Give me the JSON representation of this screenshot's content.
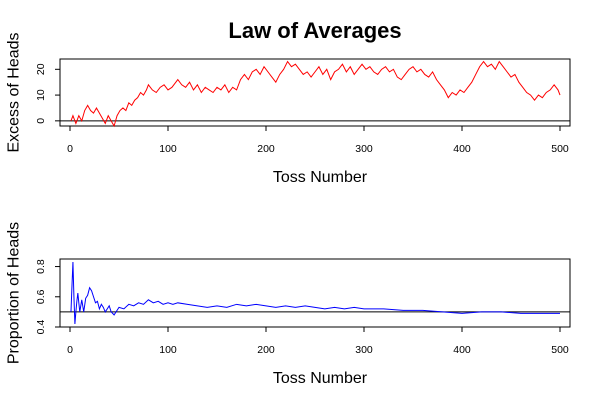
{
  "title": "Law of Averages",
  "chart_data": [
    {
      "type": "line",
      "title": "Law of Averages",
      "xlabel": "Toss Number",
      "ylabel": "Excess of Heads",
      "xlim": [
        0,
        500
      ],
      "ylim": [
        -2,
        24
      ],
      "xticks": [
        0,
        100,
        200,
        300,
        400,
        500
      ],
      "yticks": [
        0,
        10,
        20
      ],
      "grid": false,
      "reference_line": 0,
      "series": [
        {
          "color": "#ff0000",
          "x": [
            1,
            3,
            6,
            9,
            12,
            15,
            18,
            21,
            24,
            27,
            30,
            33,
            36,
            39,
            42,
            45,
            48,
            51,
            54,
            57,
            60,
            63,
            66,
            69,
            72,
            75,
            78,
            80,
            84,
            88,
            92,
            96,
            100,
            104,
            108,
            110,
            114,
            118,
            122,
            126,
            130,
            134,
            138,
            142,
            146,
            150,
            154,
            158,
            162,
            166,
            170,
            174,
            178,
            182,
            186,
            190,
            194,
            198,
            202,
            206,
            210,
            214,
            218,
            222,
            226,
            230,
            234,
            238,
            242,
            246,
            250,
            254,
            258,
            262,
            266,
            270,
            274,
            278,
            282,
            286,
            290,
            294,
            298,
            302,
            306,
            310,
            314,
            318,
            322,
            326,
            330,
            334,
            338,
            342,
            346,
            350,
            354,
            358,
            362,
            366,
            370,
            374,
            378,
            382,
            386,
            390,
            394,
            398,
            402,
            406,
            410,
            414,
            418,
            422,
            426,
            430,
            434,
            438,
            442,
            446,
            450,
            454,
            458,
            462,
            466,
            470,
            474,
            478,
            482,
            486,
            490,
            494,
            498,
            500
          ],
          "y": [
            0,
            2,
            -1,
            2,
            0,
            4,
            6,
            4,
            3,
            5,
            3,
            1,
            -1,
            2,
            0,
            -2,
            2,
            4,
            5,
            4,
            7,
            6,
            8,
            9,
            11,
            10,
            12,
            14,
            12,
            11,
            13,
            14,
            12,
            13,
            15,
            16,
            14,
            13,
            15,
            12,
            14,
            11,
            13,
            12,
            11,
            13,
            12,
            14,
            11,
            13,
            12,
            16,
            18,
            16,
            19,
            20,
            18,
            21,
            19,
            17,
            15,
            18,
            20,
            23,
            21,
            22,
            20,
            18,
            19,
            17,
            19,
            21,
            18,
            20,
            16,
            19,
            20,
            22,
            19,
            21,
            18,
            20,
            22,
            20,
            21,
            19,
            18,
            20,
            21,
            19,
            20,
            17,
            16,
            18,
            20,
            21,
            19,
            20,
            18,
            17,
            19,
            16,
            14,
            12,
            9,
            11,
            10,
            12,
            11,
            13,
            15,
            18,
            21,
            23,
            21,
            22,
            20,
            23,
            21,
            19,
            17,
            18,
            15,
            13,
            11,
            10,
            8,
            10,
            9,
            11,
            12,
            14,
            12,
            10
          ]
        }
      ]
    },
    {
      "type": "line",
      "xlabel": "Toss Number",
      "ylabel": "Proportion of Heads",
      "xlim": [
        0,
        500
      ],
      "ylim": [
        0.4,
        0.85
      ],
      "xticks": [
        0,
        100,
        200,
        300,
        400,
        500
      ],
      "yticks": [
        0.4,
        0.6,
        0.8
      ],
      "grid": false,
      "reference_line": 0.5,
      "series": [
        {
          "color": "#0000ff",
          "x": [
            1,
            2,
            3,
            4,
            5,
            6,
            7,
            8,
            9,
            10,
            12,
            14,
            16,
            18,
            20,
            22,
            24,
            26,
            28,
            30,
            32,
            34,
            36,
            38,
            40,
            42,
            45,
            48,
            50,
            55,
            60,
            65,
            70,
            75,
            80,
            85,
            90,
            95,
            100,
            105,
            110,
            120,
            130,
            140,
            150,
            160,
            170,
            180,
            190,
            200,
            210,
            220,
            230,
            240,
            250,
            260,
            270,
            280,
            290,
            300,
            320,
            340,
            360,
            380,
            400,
            420,
            440,
            460,
            480,
            500
          ],
          "y": [
            0.5,
            0.67,
            0.83,
            0.6,
            0.42,
            0.5,
            0.57,
            0.625,
            0.56,
            0.5,
            0.58,
            0.5,
            0.59,
            0.61,
            0.66,
            0.64,
            0.6,
            0.56,
            0.57,
            0.52,
            0.55,
            0.53,
            0.5,
            0.52,
            0.54,
            0.5,
            0.48,
            0.51,
            0.53,
            0.52,
            0.55,
            0.54,
            0.56,
            0.55,
            0.58,
            0.56,
            0.57,
            0.55,
            0.56,
            0.55,
            0.56,
            0.55,
            0.54,
            0.53,
            0.54,
            0.53,
            0.55,
            0.54,
            0.55,
            0.54,
            0.53,
            0.54,
            0.53,
            0.54,
            0.53,
            0.52,
            0.53,
            0.52,
            0.53,
            0.52,
            0.52,
            0.51,
            0.51,
            0.5,
            0.49,
            0.5,
            0.5,
            0.49,
            0.49,
            0.49
          ]
        }
      ]
    }
  ]
}
